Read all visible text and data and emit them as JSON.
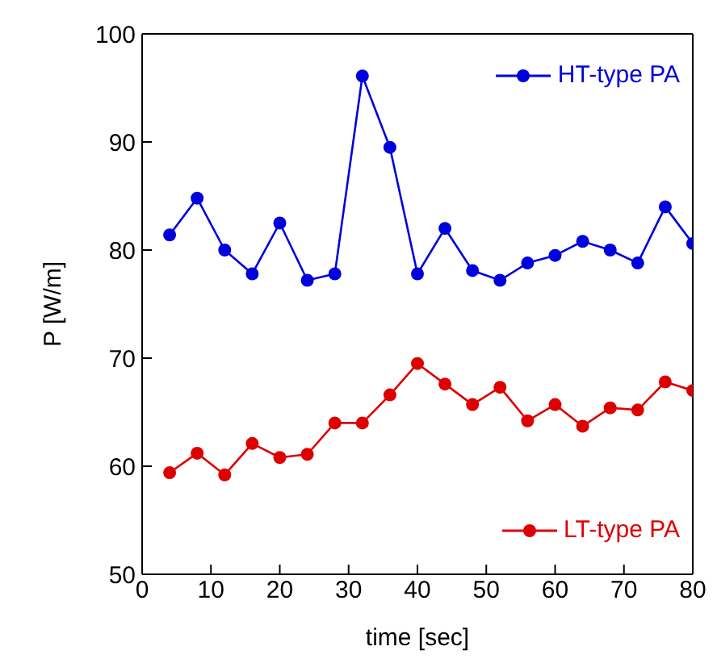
{
  "chart_data": {
    "type": "line",
    "xlabel": "time [sec]",
    "ylabel": "P [W/m]",
    "xlim": [
      0,
      80
    ],
    "xticks": [
      0,
      10,
      20,
      30,
      40,
      50,
      60,
      70,
      80
    ],
    "ylim": [
      50,
      100
    ],
    "yticks": [
      50,
      60,
      70,
      80,
      90,
      100
    ],
    "marker": "circle",
    "line_style": "solid",
    "legend": "right",
    "grid": false,
    "x": [
      4,
      8,
      12,
      16,
      20,
      24,
      28,
      32,
      36,
      40,
      44,
      48,
      52,
      56,
      60,
      64,
      68,
      72,
      76,
      80
    ],
    "series": [
      {
        "name": "HT-type PA",
        "color": "#0000dd",
        "values": [
          81.4,
          84.8,
          80,
          77.8,
          82.5,
          77.2,
          77.8,
          96.1,
          89.5,
          77.8,
          82,
          78.1,
          77.2,
          78.8,
          79.5,
          80.8,
          80,
          78.8,
          84,
          80.6
        ]
      },
      {
        "name": "LT-type PA",
        "color": "#dd0000",
        "values": [
          59.4,
          61.2,
          59.2,
          62.1,
          60.8,
          61.1,
          64,
          64,
          66.6,
          69.5,
          67.6,
          65.7,
          67.3,
          64.2,
          65.7,
          63.7,
          65.4,
          65.2,
          67.8,
          67
        ]
      }
    ]
  }
}
